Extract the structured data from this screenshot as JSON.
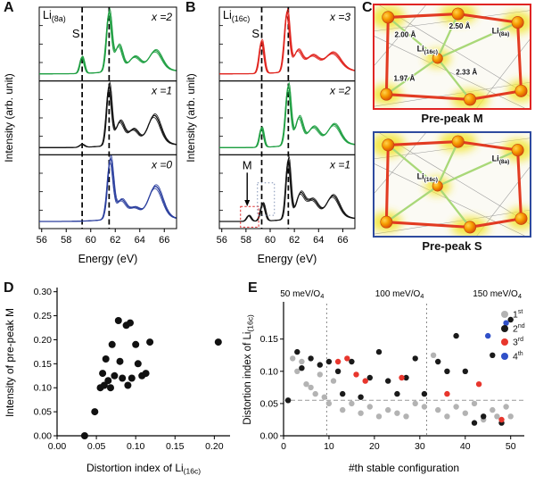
{
  "panelA": {
    "label": "A",
    "title_main": "Li",
    "title_sub": "(8a)"
  },
  "panelB": {
    "label": "B",
    "title_main": "Li",
    "title_sub": "(16c)"
  },
  "panelC": {
    "label": "C",
    "top": {
      "caption": "Pre-peak M",
      "border_color": "#e02423",
      "bond_1": "2.50 Å",
      "bond_2": "2.00 Å",
      "bond_3": "1.97 Å",
      "bond_4": "2.33 Å",
      "li16c_main": "Li",
      "li16c_sub": "(16c)",
      "li8a_main": "Li",
      "li8a_sub": "(8a)"
    },
    "bottom": {
      "caption": "Pre-peak S",
      "border_color": "#2e4a9e",
      "li16c_main": "Li",
      "li16c_sub": "(16c)",
      "li8a_main": "Li",
      "li8a_sub": "(8a)"
    }
  },
  "panelD": {
    "label": "D",
    "xlabel_main": "Distortion index of Li",
    "xlabel_sub": "(16c)"
  },
  "panelE": {
    "label": "E",
    "ylabel_main": "Distortion index of Li",
    "ylabel_sub": "(16c)",
    "legend": [
      {
        "num": "1",
        "suf": "st"
      },
      {
        "num": "2",
        "suf": "nd"
      },
      {
        "num": "3",
        "suf": "rd"
      },
      {
        "num": "4",
        "suf": "th"
      }
    ]
  },
  "chart_data": [
    {
      "id": "panelA",
      "type": "line",
      "subtype": "stacked-xas-spectra",
      "title": "Li(8a) K-edge spectra",
      "xlabel": "Energy (eV)",
      "ylabel": "Intensity (arb. unit)",
      "xlim": [
        55.8,
        67.0
      ],
      "xticks": [
        56,
        58,
        60,
        62,
        64,
        66
      ],
      "dashed_lines_x": [
        59.3,
        61.5
      ],
      "s_label": {
        "text": "S",
        "x": 58.8
      },
      "spectra": [
        {
          "name": "x =2",
          "color": "#1f9f42",
          "peaks": [
            [
              59.3,
              0.18,
              0.28
            ],
            [
              61.5,
              0.22,
              1.0
            ],
            [
              62.3,
              0.3,
              0.42
            ],
            [
              63.6,
              0.45,
              0.2
            ],
            [
              65.3,
              0.5,
              0.3
            ],
            [
              64.5,
              2.2,
              0.1
            ]
          ]
        },
        {
          "name": "x =1",
          "color": "#141414",
          "peaks": [
            [
              59.3,
              0.2,
              0.05
            ],
            [
              61.5,
              0.21,
              1.0
            ],
            [
              62.4,
              0.35,
              0.38
            ],
            [
              63.5,
              0.4,
              0.22
            ],
            [
              65.2,
              0.5,
              0.45
            ],
            [
              64.5,
              2.2,
              0.1
            ]
          ]
        },
        {
          "name": "x =0",
          "color": "#2b3f9e",
          "peaks": [
            [
              61.6,
              0.24,
              1.0
            ],
            [
              62.5,
              0.4,
              0.3
            ],
            [
              63.6,
              0.4,
              0.14
            ],
            [
              65.3,
              0.55,
              0.5
            ],
            [
              64.5,
              2.2,
              0.1
            ]
          ]
        }
      ]
    },
    {
      "id": "panelB",
      "type": "line",
      "subtype": "stacked-xas-spectra",
      "title": "Li(16c) K-edge spectra",
      "xlabel": "Energy (eV)",
      "ylabel": "Intensity (arb. unit)",
      "xlim": [
        55.8,
        67.0
      ],
      "xticks": [
        56,
        58,
        60,
        62,
        64,
        66
      ],
      "dashed_lines_x": [
        59.3,
        61.5
      ],
      "s_label": {
        "text": "S",
        "x": 58.8
      },
      "m_label": {
        "text": "M",
        "x": 58.1
      },
      "boxes": [
        {
          "x1": 57.55,
          "x2": 59.05,
          "f0": 0.02,
          "f1": 0.3,
          "color": "#e03030",
          "dash": "2.5 2"
        },
        {
          "x1": 58.95,
          "x2": 60.35,
          "f0": 0.18,
          "f1": 0.62,
          "color": "#7f8fb3",
          "dash": "1.5 2.5"
        }
      ],
      "spectra": [
        {
          "name": "x =3",
          "color": "#e0251f",
          "peaks": [
            [
              59.3,
              0.2,
              0.55
            ],
            [
              61.4,
              0.22,
              1.0
            ],
            [
              62.3,
              0.35,
              0.33
            ],
            [
              63.5,
              0.5,
              0.22
            ],
            [
              65.2,
              0.6,
              0.26
            ],
            [
              64.5,
              2.2,
              0.1
            ]
          ]
        },
        {
          "name": "x =2",
          "color": "#1f9f42",
          "peaks": [
            [
              59.3,
              0.18,
              0.33
            ],
            [
              61.5,
              0.22,
              1.0
            ],
            [
              62.4,
              0.3,
              0.45
            ],
            [
              63.6,
              0.45,
              0.26
            ],
            [
              65.3,
              0.5,
              0.3
            ],
            [
              64.5,
              2.2,
              0.1
            ]
          ]
        },
        {
          "name": "x =1",
          "color": "#141414",
          "peaks": [
            [
              58.25,
              0.18,
              0.1
            ],
            [
              59.4,
              0.2,
              0.3
            ],
            [
              61.5,
              0.2,
              1.0
            ],
            [
              62.5,
              0.35,
              0.4
            ],
            [
              63.5,
              0.45,
              0.28
            ],
            [
              65.2,
              0.5,
              0.34
            ],
            [
              64.5,
              2.2,
              0.1
            ]
          ]
        }
      ]
    },
    {
      "id": "panelD",
      "type": "scatter",
      "xlabel": "Distortion index of Li(16c)",
      "ylabel": "Intensity of pre-peak M",
      "xlim": [
        0,
        0.22
      ],
      "ylim": [
        0,
        0.305
      ],
      "xticks": [
        0,
        0.05,
        0.1,
        0.15,
        0.2
      ],
      "xtick_labels": [
        "0.00",
        "0.05",
        "0.10",
        "0.15",
        "0.20"
      ],
      "yticks": [
        0,
        0.05,
        0.1,
        0.15,
        0.2,
        0.25,
        0.3
      ],
      "ytick_labels": [
        "0.00",
        "0.05",
        "0.10",
        "0.15",
        "0.20",
        "0.25",
        "0.30"
      ],
      "color": "#111111",
      "point_r": 4,
      "points": [
        [
          0.035,
          0.0
        ],
        [
          0.048,
          0.05
        ],
        [
          0.055,
          0.1
        ],
        [
          0.058,
          0.13
        ],
        [
          0.06,
          0.105
        ],
        [
          0.062,
          0.16
        ],
        [
          0.065,
          0.115
        ],
        [
          0.068,
          0.1
        ],
        [
          0.07,
          0.19
        ],
        [
          0.073,
          0.125
        ],
        [
          0.078,
          0.24
        ],
        [
          0.08,
          0.155
        ],
        [
          0.083,
          0.12
        ],
        [
          0.088,
          0.23
        ],
        [
          0.09,
          0.105
        ],
        [
          0.093,
          0.235
        ],
        [
          0.095,
          0.12
        ],
        [
          0.1,
          0.19
        ],
        [
          0.103,
          0.15
        ],
        [
          0.108,
          0.125
        ],
        [
          0.113,
          0.13
        ],
        [
          0.118,
          0.195
        ],
        [
          0.205,
          0.195
        ]
      ]
    },
    {
      "id": "panelE",
      "type": "scatter",
      "xlabel": "#th stable configuration",
      "ylabel": "Distortion index of Li(16c)",
      "xlim": [
        0,
        53
      ],
      "ylim": [
        0,
        0.205
      ],
      "xticks": [
        0,
        10,
        20,
        30,
        40,
        50
      ],
      "xtick_labels": [
        "0",
        "10",
        "20",
        "30",
        "40",
        "50"
      ],
      "yticks": [
        0,
        0.05,
        0.1,
        0.15
      ],
      "ytick_labels": [
        "0.00",
        "0.05",
        "0.10",
        "0.15"
      ],
      "point_r": 3.2,
      "vlines_x": [
        9.5,
        31.5
      ],
      "hline_y": 0.055,
      "annotations": [
        {
          "text": "50 meV/O",
          "sub": "4",
          "x": 9.5
        },
        {
          "text": "100 meV/O",
          "sub": "4",
          "x": 31.5
        },
        {
          "text": "150 meV/O",
          "sub": "4",
          "x": 53
        }
      ],
      "series": [
        {
          "name": "1st",
          "color": "#b3b3b3",
          "points": [
            [
              1,
              0.055
            ],
            [
              2,
              0.12
            ],
            [
              3,
              0.1
            ],
            [
              4,
              0.115
            ],
            [
              5,
              0.08
            ],
            [
              6,
              0.075
            ],
            [
              7,
              0.065
            ],
            [
              8,
              0.095
            ],
            [
              9,
              0.06
            ],
            [
              10,
              0.05
            ],
            [
              11,
              0.085
            ],
            [
              13,
              0.04
            ],
            [
              15,
              0.05
            ],
            [
              17,
              0.035
            ],
            [
              19,
              0.045
            ],
            [
              21,
              0.03
            ],
            [
              23,
              0.04
            ],
            [
              25,
              0.035
            ],
            [
              27,
              0.03
            ],
            [
              29,
              0.05
            ],
            [
              31,
              0.045
            ],
            [
              33,
              0.125
            ],
            [
              34,
              0.04
            ],
            [
              36,
              0.03
            ],
            [
              38,
              0.045
            ],
            [
              40,
              0.035
            ],
            [
              42,
              0.05
            ],
            [
              44,
              0.025
            ],
            [
              46,
              0.04
            ],
            [
              47,
              0.03
            ],
            [
              49,
              0.045
            ],
            [
              50,
              0.03
            ]
          ]
        },
        {
          "name": "2nd",
          "color": "#1a1a1a",
          "points": [
            [
              1,
              0.055
            ],
            [
              3,
              0.13
            ],
            [
              4,
              0.105
            ],
            [
              6,
              0.12
            ],
            [
              8,
              0.11
            ],
            [
              10,
              0.115
            ],
            [
              12,
              0.1
            ],
            [
              13,
              0.065
            ],
            [
              15,
              0.115
            ],
            [
              17,
              0.06
            ],
            [
              19,
              0.09
            ],
            [
              21,
              0.13
            ],
            [
              23,
              0.085
            ],
            [
              25,
              0.065
            ],
            [
              27,
              0.09
            ],
            [
              29,
              0.12
            ],
            [
              31,
              0.065
            ],
            [
              34,
              0.115
            ],
            [
              36,
              0.1
            ],
            [
              38,
              0.155
            ],
            [
              40,
              0.1
            ],
            [
              42,
              0.02
            ],
            [
              44,
              0.03
            ],
            [
              46,
              0.125
            ],
            [
              48,
              0.02
            ],
            [
              50,
              0.18
            ]
          ]
        },
        {
          "name": "3rd",
          "color": "#e8362d",
          "points": [
            [
              12,
              0.115
            ],
            [
              14,
              0.12
            ],
            [
              16,
              0.095
            ],
            [
              18,
              0.085
            ],
            [
              26,
              0.09
            ],
            [
              36,
              0.065
            ],
            [
              43,
              0.08
            ],
            [
              48,
              0.025
            ]
          ]
        },
        {
          "name": "4th",
          "color": "#3050c8",
          "points": [
            [
              45,
              0.155
            ],
            [
              49,
              0.175
            ]
          ]
        }
      ]
    }
  ]
}
